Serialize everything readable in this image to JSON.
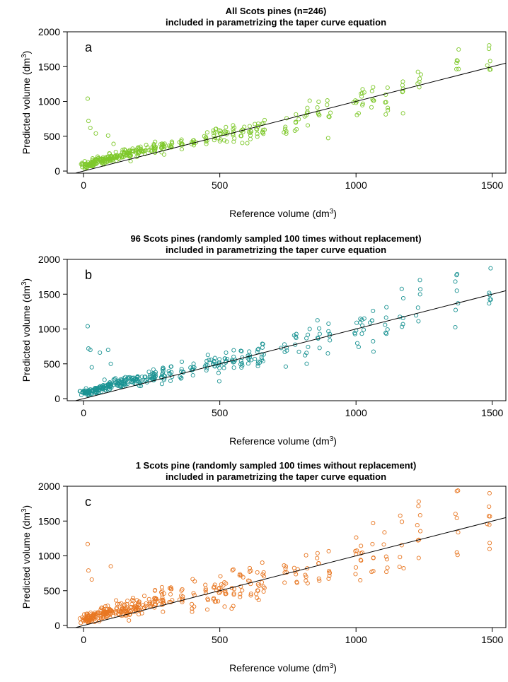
{
  "figure": {
    "name": "taper-curve-volume-validation"
  },
  "chart_data": [
    {
      "type": "scatter",
      "panel_label": "a",
      "title_line1": "All Scots pines (n=246)",
      "title_line2": "included in parametrizing the taper curve equation",
      "xlabel": "Reference volume (dm",
      "ylabel": "Predicted volume (dm",
      "unit_superscript": "3",
      "xlim": [
        -60,
        1550
      ],
      "ylim": [
        -30,
        2000
      ],
      "x_ticks": [
        0,
        500,
        1000,
        1500
      ],
      "y_ticks": [
        0,
        500,
        1000,
        1500,
        2000
      ],
      "point_color": "#7ec82b",
      "reference_line": {
        "label": "1:1 line",
        "from": [
          -60,
          -60
        ],
        "to": [
          1550,
          1550
        ]
      },
      "scatter_spread": 0.22,
      "series": [
        {
          "x": [
            8,
            15,
            25,
            40,
            55,
            70,
            85,
            100,
            120,
            140,
            160,
            180,
            200,
            230,
            260,
            290,
            320,
            360,
            400,
            450,
            480,
            500,
            520,
            550,
            580,
            610,
            640,
            660,
            740,
            780,
            820,
            860,
            900,
            1000,
            1020,
            1060,
            1110,
            1170,
            1230,
            1370,
            1490
          ],
          "y": [
            80,
            90,
            110,
            120,
            140,
            160,
            170,
            190,
            210,
            230,
            240,
            260,
            270,
            300,
            330,
            350,
            380,
            410,
            440,
            470,
            500,
            500,
            520,
            540,
            560,
            580,
            600,
            630,
            720,
            760,
            810,
            850,
            880,
            990,
            1020,
            1060,
            1040,
            1120,
            1400,
            1500,
            1510
          ],
          "outliers": [
            [
              15,
              1040
            ],
            [
              18,
              720
            ],
            [
              25,
              620
            ],
            [
              45,
              540
            ],
            [
              90,
              510
            ],
            [
              110,
              390
            ],
            [
              830,
              1010
            ],
            [
              1030,
              1130
            ],
            [
              1110,
              990
            ]
          ]
        }
      ]
    },
    {
      "type": "scatter",
      "panel_label": "b",
      "title_line1": "96 Scots pines (randomly sampled 100 times without replacement)",
      "title_line2": "included in parametrizing the taper curve equation",
      "xlabel": "Reference volume (dm",
      "ylabel": "Predicted volume (dm",
      "unit_superscript": "3",
      "xlim": [
        -60,
        1550
      ],
      "ylim": [
        -30,
        2000
      ],
      "x_ticks": [
        0,
        500,
        1000,
        1500
      ],
      "y_ticks": [
        0,
        500,
        1000,
        1500,
        2000
      ],
      "point_color": "#1b9393",
      "reference_line": {
        "label": "1:1 line",
        "from": [
          -60,
          -60
        ],
        "to": [
          1550,
          1550
        ]
      },
      "scatter_spread": 0.3,
      "series": [
        {
          "x": [
            8,
            15,
            25,
            40,
            55,
            70,
            85,
            100,
            120,
            140,
            160,
            180,
            200,
            230,
            260,
            290,
            320,
            360,
            400,
            450,
            480,
            500,
            520,
            550,
            580,
            610,
            640,
            660,
            740,
            780,
            820,
            860,
            900,
            1000,
            1020,
            1060,
            1110,
            1170,
            1230,
            1370,
            1490
          ],
          "y": [
            80,
            90,
            110,
            120,
            140,
            160,
            170,
            190,
            210,
            230,
            240,
            260,
            270,
            300,
            330,
            350,
            380,
            410,
            440,
            470,
            500,
            500,
            520,
            540,
            560,
            580,
            600,
            630,
            720,
            760,
            810,
            850,
            880,
            990,
            1020,
            1060,
            1040,
            1120,
            1400,
            1500,
            1510
          ],
          "outliers": [
            [
              15,
              1040
            ],
            [
              18,
              720
            ],
            [
              25,
              700
            ],
            [
              60,
              660
            ],
            [
              90,
              700
            ],
            [
              100,
              500
            ],
            [
              30,
              450
            ],
            [
              830,
              1000
            ],
            [
              1030,
              1150
            ],
            [
              1370,
              1550
            ]
          ]
        }
      ]
    },
    {
      "type": "scatter",
      "panel_label": "c",
      "title_line1": "1 Scots pine (randomly sampled 100 times without replacement)",
      "title_line2": "included in parametrizing the taper curve equation",
      "xlabel": "Reference volume (dm",
      "ylabel": "Predicted volume (dm",
      "unit_superscript": "3",
      "xlim": [
        -60,
        1550
      ],
      "ylim": [
        -30,
        2000
      ],
      "x_ticks": [
        0,
        500,
        1000,
        1500
      ],
      "y_ticks": [
        0,
        500,
        1000,
        1500,
        2000
      ],
      "point_color": "#e87722",
      "reference_line": {
        "label": "1:1 line",
        "from": [
          -60,
          -60
        ],
        "to": [
          1550,
          1550
        ]
      },
      "scatter_spread": 0.45,
      "series": [
        {
          "x": [
            8,
            15,
            25,
            40,
            55,
            70,
            85,
            100,
            120,
            140,
            160,
            180,
            200,
            230,
            260,
            290,
            320,
            360,
            400,
            450,
            480,
            500,
            520,
            550,
            580,
            610,
            640,
            660,
            740,
            780,
            820,
            860,
            900,
            1000,
            1020,
            1060,
            1110,
            1170,
            1230,
            1370,
            1490
          ],
          "y": [
            80,
            90,
            110,
            120,
            140,
            160,
            170,
            190,
            210,
            230,
            240,
            260,
            270,
            300,
            330,
            350,
            380,
            410,
            440,
            470,
            500,
            500,
            520,
            540,
            560,
            580,
            600,
            630,
            720,
            760,
            810,
            850,
            880,
            990,
            1020,
            1060,
            1040,
            1120,
            1400,
            1500,
            1510
          ],
          "outliers": [
            [
              15,
              1170
            ],
            [
              18,
              790
            ],
            [
              30,
              660
            ],
            [
              100,
              850
            ],
            [
              1230,
              1780
            ],
            [
              1370,
              1930
            ],
            [
              1490,
              1900
            ],
            [
              1230,
              970
            ],
            [
              1370,
              1050
            ],
            [
              1490,
              1100
            ]
          ]
        }
      ]
    }
  ]
}
